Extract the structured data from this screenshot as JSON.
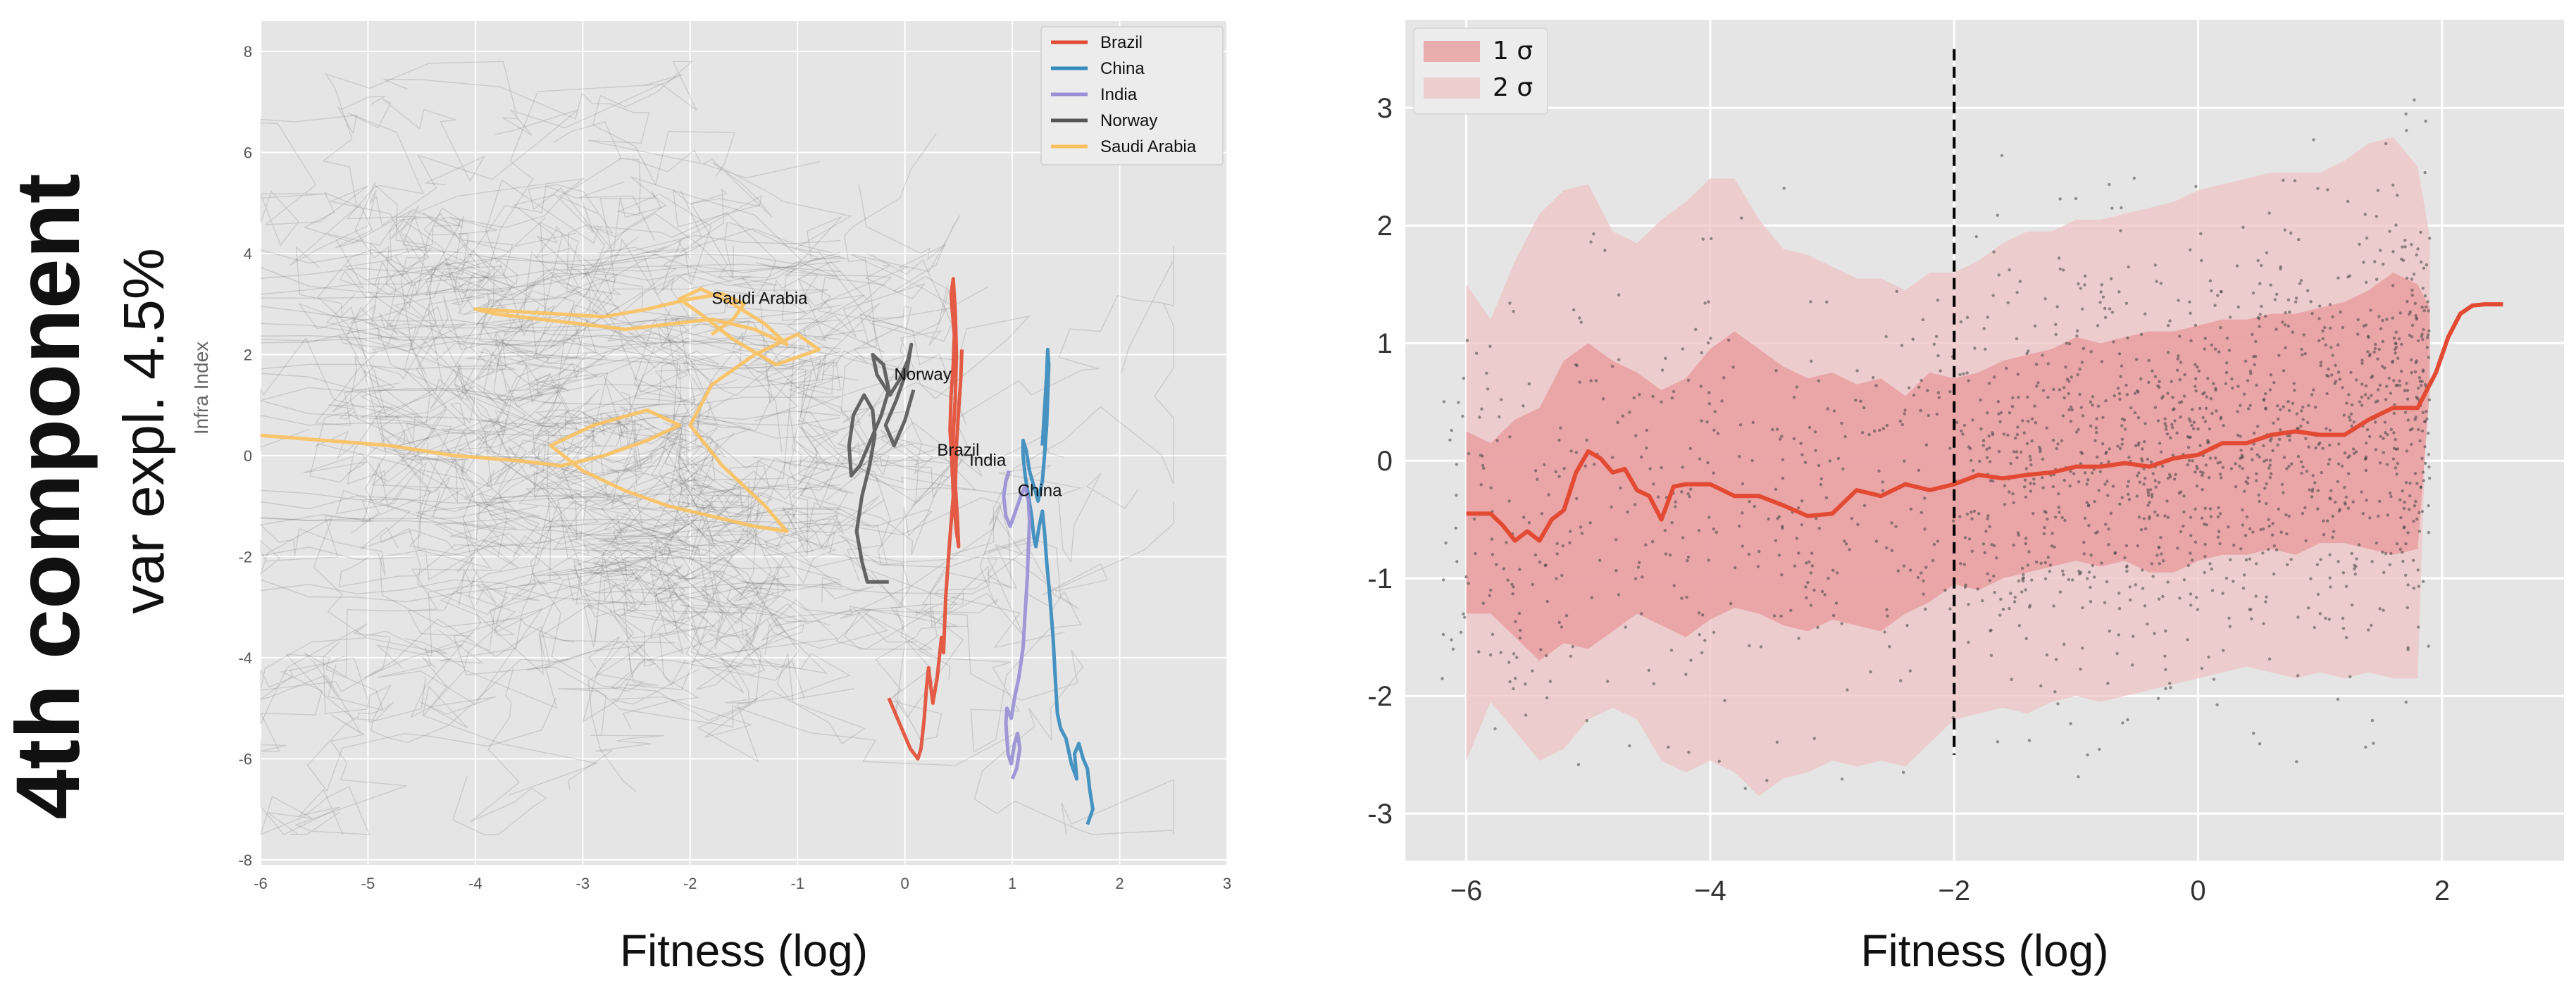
{
  "figure": {
    "title": "4th component",
    "subtitle": "var expl. 4.5%"
  },
  "colors": {
    "panel_bg": "#e5e5e5",
    "grid": "#ffffff",
    "background_lines": "#555555",
    "band1": "#e8989a",
    "band2": "#efc3c4",
    "median": "#e24a33",
    "scatter": "#444444",
    "dashed": "#000000"
  },
  "chart_data": [
    {
      "type": "line",
      "title": "",
      "xlabel": "Fitness (log)",
      "ylabel": "Infra Index",
      "xlim": [
        -6,
        3
      ],
      "ylim": [
        -8.1,
        8.6
      ],
      "xticks": [
        "-6",
        "-5",
        "-4",
        "-3",
        "-2",
        "-1",
        "0",
        "1",
        "2",
        "3"
      ],
      "yticks": [
        "8",
        "6",
        "4",
        "2",
        "0",
        "-2",
        "-4",
        "-6",
        "-8"
      ],
      "legend_position": "top-right",
      "legend": [
        "Brazil",
        "China",
        "India",
        "Norway",
        "Saudi Arabia"
      ],
      "background_series_note": "many gray country trajectories",
      "series": [
        {
          "name": "Brazil",
          "color": "#e24a33",
          "x": [
            -0.15,
            -0.05,
            0.05,
            0.12,
            0.15,
            0.18,
            0.2,
            0.22,
            0.26,
            0.3,
            0.34,
            0.36,
            0.38,
            0.4,
            0.42,
            0.45,
            0.44,
            0.42,
            0.43,
            0.45,
            0.46,
            0.44,
            0.43,
            0.45,
            0.47,
            0.48,
            0.47,
            0.45,
            0.44,
            0.46,
            0.48,
            0.5,
            0.49,
            0.47,
            0.48,
            0.5,
            0.52,
            0.53
          ],
          "y": [
            -4.8,
            -5.3,
            -5.8,
            -6.0,
            -5.8,
            -5.2,
            -4.6,
            -4.2,
            -4.9,
            -4.4,
            -3.6,
            -3.9,
            -2.8,
            -2.2,
            -1.6,
            -0.8,
            -0.2,
            0.5,
            1.2,
            1.8,
            2.4,
            2.9,
            3.2,
            3.5,
            2.8,
            2.0,
            1.2,
            0.4,
            -0.3,
            -1.0,
            -1.5,
            -1.8,
            -1.3,
            -0.6,
            0.2,
            0.9,
            1.5,
            2.1
          ]
        },
        {
          "name": "China",
          "color": "#348abd",
          "x": [
            1.7,
            1.75,
            1.72,
            1.7,
            1.66,
            1.62,
            1.58,
            1.6,
            1.55,
            1.5,
            1.45,
            1.42,
            1.4,
            1.38,
            1.35,
            1.32,
            1.3,
            1.28,
            1.25,
            1.22,
            1.2,
            1.18,
            1.15,
            1.12,
            1.1,
            1.1,
            1.13,
            1.16,
            1.2,
            1.24,
            1.28,
            1.3,
            1.32,
            1.33,
            1.34,
            1.33,
            1.32,
            1.3,
            1.28
          ],
          "y": [
            -7.3,
            -7.0,
            -6.6,
            -6.2,
            -6.0,
            -5.7,
            -5.9,
            -6.4,
            -6.1,
            -5.6,
            -5.4,
            -5.1,
            -4.4,
            -3.6,
            -2.8,
            -2.1,
            -1.5,
            -1.1,
            -1.4,
            -1.8,
            -1.6,
            -1.2,
            -0.8,
            -0.4,
            0.0,
            0.3,
            0.1,
            -0.3,
            -0.6,
            -0.9,
            -0.5,
            0.0,
            0.6,
            1.2,
            1.8,
            2.1,
            1.6,
            0.9,
            0.2
          ]
        },
        {
          "name": "India",
          "color": "#988ed5",
          "x": [
            1.0,
            1.04,
            1.07,
            1.05,
            1.02,
            0.99,
            0.96,
            0.94,
            0.95,
            0.99,
            1.02,
            1.06,
            1.1,
            1.12,
            1.14,
            1.15,
            1.16,
            1.15,
            1.12,
            1.08,
            1.03,
            0.98,
            0.94,
            0.92,
            0.94,
            0.97
          ],
          "y": [
            -6.4,
            -6.2,
            -5.8,
            -5.5,
            -5.7,
            -6.1,
            -5.9,
            -5.3,
            -5.0,
            -5.2,
            -4.8,
            -4.4,
            -3.8,
            -3.1,
            -2.4,
            -1.8,
            -1.3,
            -0.9,
            -0.6,
            -0.8,
            -1.1,
            -1.4,
            -1.2,
            -0.8,
            -0.5,
            -0.3
          ]
        },
        {
          "name": "Norway",
          "color": "#555555",
          "x": [
            -0.15,
            -0.35,
            -0.4,
            -0.45,
            -0.4,
            -0.33,
            -0.28,
            -0.3,
            -0.38,
            -0.48,
            -0.52,
            -0.5,
            -0.42,
            -0.32,
            -0.22,
            -0.15,
            -0.2,
            -0.3,
            -0.26,
            -0.14,
            -0.05,
            0.03,
            0.06,
            0.02,
            -0.08,
            -0.18,
            -0.1,
            0.0,
            0.08
          ],
          "y": [
            -2.5,
            -2.5,
            -2.1,
            -1.5,
            -0.8,
            -0.2,
            0.4,
            0.9,
            1.2,
            0.8,
            0.2,
            -0.4,
            -0.2,
            0.3,
            0.8,
            1.3,
            1.8,
            2.0,
            1.6,
            1.2,
            1.5,
            1.9,
            2.2,
            1.7,
            1.1,
            0.6,
            0.2,
            0.7,
            1.3
          ]
        },
        {
          "name": "Saudi Arabia",
          "color": "#fbc15e",
          "x": [
            -6.0,
            -5.4,
            -4.8,
            -4.2,
            -3.6,
            -3.2,
            -2.8,
            -2.4,
            -2.1,
            -2.4,
            -2.9,
            -3.3,
            -3.0,
            -2.6,
            -2.2,
            -1.8,
            -1.4,
            -1.1,
            -1.3,
            -1.7,
            -2.0,
            -1.8,
            -1.4,
            -1.0,
            -0.8,
            -1.2,
            -1.6,
            -1.9,
            -2.1,
            -1.9,
            -1.6,
            -1.3,
            -1.1,
            -1.4,
            -1.8,
            -2.2,
            -2.6,
            -3.0,
            -3.4,
            -3.8,
            -4.0,
            -3.6,
            -3.2,
            -2.8,
            -2.4,
            -2.0,
            -1.7,
            -1.5,
            -1.6,
            -1.8
          ],
          "y": [
            0.4,
            0.3,
            0.2,
            0.0,
            -0.1,
            -0.2,
            0.0,
            0.3,
            0.6,
            0.9,
            0.6,
            0.2,
            -0.3,
            -0.7,
            -1.0,
            -1.2,
            -1.4,
            -1.5,
            -1.0,
            -0.2,
            0.6,
            1.4,
            2.0,
            2.4,
            2.1,
            1.8,
            2.3,
            2.8,
            3.1,
            3.3,
            3.0,
            2.6,
            2.2,
            2.5,
            2.7,
            2.6,
            2.5,
            2.6,
            2.7,
            2.8,
            2.9,
            2.85,
            2.8,
            2.75,
            2.9,
            3.1,
            3.2,
            3.0,
            2.7,
            2.4
          ]
        }
      ],
      "annotations": [
        {
          "text": "Saudi Arabia",
          "x": -1.8,
          "y": 3.0
        },
        {
          "text": "Norway",
          "x": -0.1,
          "y": 1.5
        },
        {
          "text": "Brazil",
          "x": 0.3,
          "y": 0.0
        },
        {
          "text": "India",
          "x": 0.6,
          "y": -0.2
        },
        {
          "text": "China",
          "x": 1.05,
          "y": -0.8
        }
      ]
    },
    {
      "type": "area",
      "title": "",
      "xlabel": "Fitness (log)",
      "ylabel": "",
      "xlim": [
        -6.5,
        3.0
      ],
      "ylim": [
        -3.4,
        3.75
      ],
      "xticks": [
        "−6",
        "−4",
        "−2",
        "0",
        "2"
      ],
      "yticks": [
        "3",
        "2",
        "1",
        "0",
        "-1",
        "-2",
        "-3"
      ],
      "legend_position": "top-left",
      "legend": [
        "1 σ",
        "2 σ"
      ],
      "vline": {
        "x": -2,
        "ymin": -2.5,
        "ymax": 3.5,
        "style": "dashed"
      },
      "band_x": [
        -6.0,
        -5.8,
        -5.6,
        -5.4,
        -5.2,
        -5.0,
        -4.8,
        -4.6,
        -4.4,
        -4.2,
        -4.0,
        -3.8,
        -3.6,
        -3.4,
        -3.2,
        -3.0,
        -2.8,
        -2.6,
        -2.4,
        -2.2,
        -2.0,
        -1.8,
        -1.6,
        -1.4,
        -1.2,
        -1.0,
        -0.8,
        -0.6,
        -0.4,
        -0.2,
        0.0,
        0.2,
        0.4,
        0.6,
        0.8,
        1.0,
        1.2,
        1.4,
        1.6,
        1.8,
        1.9
      ],
      "band1_lower": [
        -1.3,
        -1.3,
        -1.5,
        -1.7,
        -1.55,
        -1.6,
        -1.45,
        -1.3,
        -1.4,
        -1.5,
        -1.35,
        -1.25,
        -1.3,
        -1.4,
        -1.45,
        -1.35,
        -1.4,
        -1.45,
        -1.3,
        -1.2,
        -1.05,
        -1.1,
        -1.0,
        -0.95,
        -0.9,
        -0.85,
        -0.9,
        -0.85,
        -0.95,
        -0.95,
        -0.85,
        -0.8,
        -0.8,
        -0.75,
        -0.8,
        -0.7,
        -0.7,
        -0.75,
        -0.8,
        -0.75,
        0.6
      ],
      "band1_upper": [
        0.25,
        0.15,
        0.35,
        0.45,
        0.85,
        1.0,
        0.85,
        0.75,
        0.6,
        0.7,
        0.95,
        1.1,
        0.95,
        0.8,
        0.7,
        0.75,
        0.65,
        0.7,
        0.55,
        0.75,
        0.7,
        0.75,
        0.85,
        0.9,
        0.95,
        1.05,
        1.0,
        1.05,
        1.1,
        1.1,
        1.15,
        1.2,
        1.2,
        1.25,
        1.25,
        1.3,
        1.35,
        1.45,
        1.6,
        1.5,
        1.3
      ],
      "band2_lower": [
        -2.55,
        -2.05,
        -2.3,
        -2.55,
        -2.45,
        -2.2,
        -2.1,
        -2.2,
        -2.55,
        -2.65,
        -2.55,
        -2.65,
        -2.85,
        -2.7,
        -2.65,
        -2.55,
        -2.6,
        -2.55,
        -2.6,
        -2.4,
        -2.2,
        -2.15,
        -2.1,
        -2.15,
        -2.05,
        -2.0,
        -2.05,
        -2.0,
        -1.95,
        -1.9,
        -1.85,
        -1.8,
        -1.75,
        -1.8,
        -1.85,
        -1.8,
        -1.85,
        -1.8,
        -1.85,
        -1.85,
        1.3
      ],
      "band2_upper": [
        1.5,
        1.2,
        1.7,
        2.1,
        2.3,
        2.35,
        1.95,
        1.85,
        2.05,
        2.2,
        2.4,
        2.4,
        2.05,
        1.8,
        1.75,
        1.65,
        1.55,
        1.55,
        1.45,
        1.6,
        1.6,
        1.7,
        1.85,
        1.95,
        1.95,
        2.05,
        2.05,
        2.1,
        2.15,
        2.2,
        2.3,
        2.35,
        2.4,
        2.45,
        2.45,
        2.45,
        2.55,
        2.7,
        2.75,
        2.5,
        1.9
      ],
      "median_x": [
        -6.0,
        -5.8,
        -5.7,
        -5.6,
        -5.5,
        -5.4,
        -5.3,
        -5.2,
        -5.1,
        -5.0,
        -4.9,
        -4.8,
        -4.7,
        -4.6,
        -4.5,
        -4.4,
        -4.3,
        -4.2,
        -4.0,
        -3.8,
        -3.6,
        -3.4,
        -3.2,
        -3.0,
        -2.8,
        -2.6,
        -2.4,
        -2.2,
        -2.0,
        -1.8,
        -1.6,
        -1.4,
        -1.2,
        -1.0,
        -0.8,
        -0.6,
        -0.4,
        -0.2,
        0.0,
        0.2,
        0.4,
        0.6,
        0.8,
        1.0,
        1.2,
        1.4,
        1.6,
        1.8,
        1.95,
        2.05,
        2.15,
        2.25,
        2.35,
        2.5
      ],
      "median_y": [
        -0.45,
        -0.45,
        -0.55,
        -0.68,
        -0.6,
        -0.68,
        -0.5,
        -0.42,
        -0.1,
        0.08,
        0.02,
        -0.1,
        -0.07,
        -0.25,
        -0.3,
        -0.5,
        -0.22,
        -0.2,
        -0.2,
        -0.3,
        -0.3,
        -0.38,
        -0.47,
        -0.45,
        -0.25,
        -0.3,
        -0.2,
        -0.25,
        -0.2,
        -0.12,
        -0.15,
        -0.12,
        -0.1,
        -0.05,
        -0.05,
        -0.02,
        -0.05,
        0.02,
        0.05,
        0.15,
        0.15,
        0.22,
        0.25,
        0.22,
        0.22,
        0.35,
        0.45,
        0.45,
        0.75,
        1.05,
        1.25,
        1.32,
        1.33,
        1.33
      ],
      "scatter_description": "about 1700 small gray points, density increasing toward x from -2 to 2"
    }
  ]
}
